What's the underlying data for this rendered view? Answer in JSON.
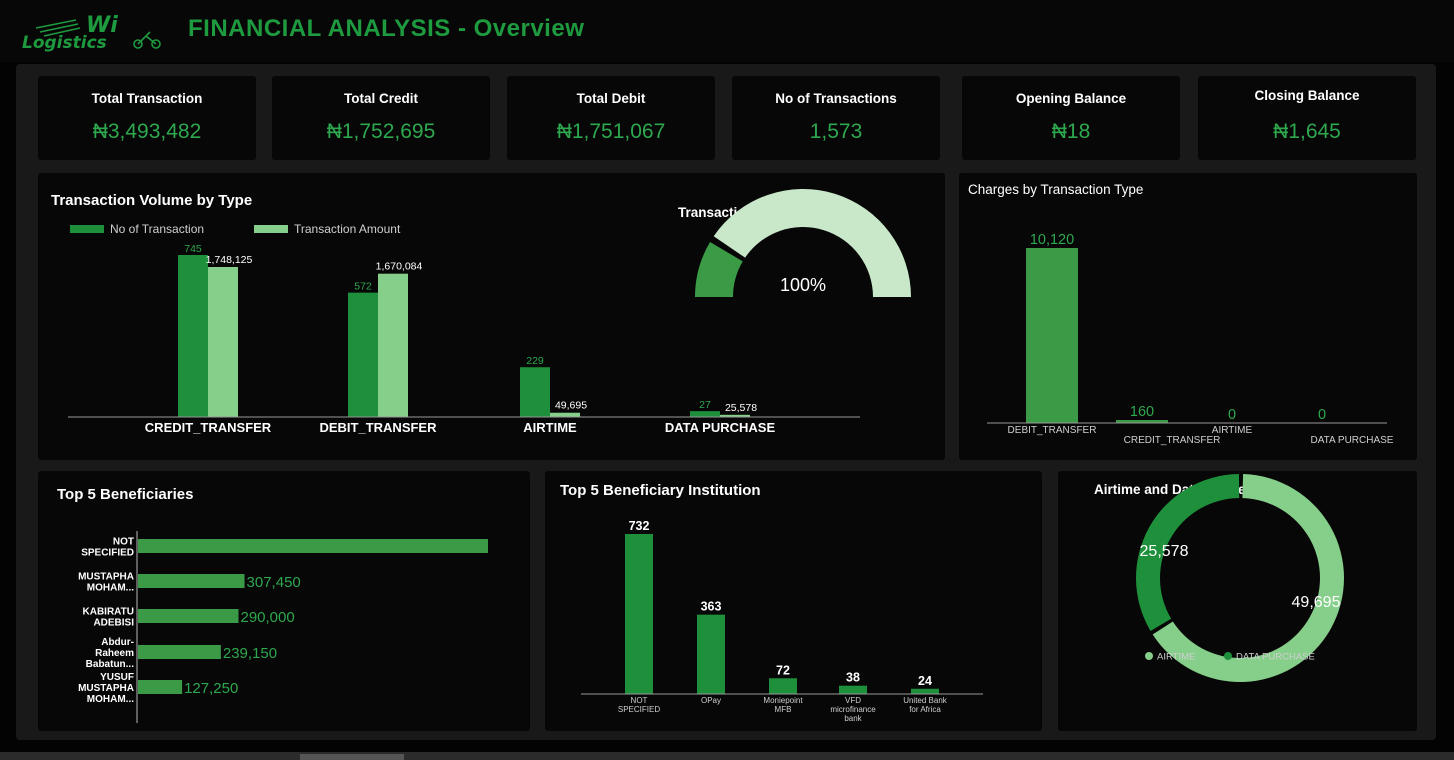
{
  "header": {
    "logo_text_top": "Wi",
    "logo_text_bottom": "Logistics",
    "title": "FINANCIAL ANALYSIS - Overview"
  },
  "kpis": [
    {
      "label": "Total Transaction",
      "value": "₦3,493,482"
    },
    {
      "label": "Total Credit",
      "value": "₦1,752,695"
    },
    {
      "label": "Total Debit",
      "value": "₦1,751,067"
    },
    {
      "label": "No of Transactions",
      "value": "1,573"
    },
    {
      "label": "Opening Balance",
      "value": "₦18"
    },
    {
      "label": "Closing Balance",
      "value": "₦1,645"
    }
  ],
  "colors": {
    "green": "#1e8f3a",
    "light_green": "#86cf8a",
    "mid_green": "#3a9a45",
    "pale_green": "#c9e8c9",
    "title_green": "#1e9a3f"
  },
  "chart_data": [
    {
      "id": "volume",
      "type": "bar",
      "title": "Transaction Volume by Type",
      "categories": [
        "CREDIT_TRANSFER",
        "DEBIT_TRANSFER",
        "AIRTIME",
        "DATA PURCHASE"
      ],
      "series": [
        {
          "name": "No of Transaction",
          "values": [
            745,
            572,
            229,
            27
          ],
          "labels": [
            "745",
            "572",
            "229",
            "27"
          ]
        },
        {
          "name": "Transaction Amount",
          "values": [
            1748125,
            1670084,
            49695,
            25578
          ],
          "labels": [
            "1,748,125",
            "1,670,084",
            "49,695",
            "25,578"
          ]
        }
      ],
      "legend": "top-left"
    },
    {
      "id": "status",
      "type": "pie",
      "title": "Transaction Status",
      "value_label": "100%",
      "values": [
        100
      ]
    },
    {
      "id": "charges",
      "type": "bar",
      "title": "Charges by Transaction Type",
      "categories": [
        "DEBIT_TRANSFER",
        "CREDIT_TRANSFER",
        "AIRTIME",
        "DATA PURCHASE"
      ],
      "values": [
        10120,
        160,
        0,
        0
      ],
      "labels": [
        "10,120",
        "160",
        "0",
        "0"
      ]
    },
    {
      "id": "beneficiaries",
      "type": "bar",
      "title": "Top 5 Beneficiaries",
      "categories": [
        [
          "NOT",
          "SPECIFIED"
        ],
        [
          "MUSTAPHA",
          "MOHAM..."
        ],
        [
          "KABIRATU",
          "ADEBISI"
        ],
        [
          "Abdur-",
          "Raheem",
          "Babatun..."
        ],
        [
          "YUSUF",
          "MUSTAPHA",
          "MOHAM..."
        ]
      ],
      "values": [
        1010000,
        307450,
        290000,
        239150,
        127250
      ],
      "labels": [
        "",
        "307,450",
        "290,000",
        "239,150",
        "127,250"
      ]
    },
    {
      "id": "institutions",
      "type": "bar",
      "title": "Top 5 Beneficiary Institution",
      "categories": [
        [
          "NOT",
          "SPECIFIED"
        ],
        [
          "OPay"
        ],
        [
          "Moniepoint",
          "MFB"
        ],
        [
          "VFD",
          "microfinance",
          "bank"
        ],
        [
          "United Bank",
          "for Africa"
        ]
      ],
      "values": [
        732,
        363,
        72,
        38,
        24
      ],
      "labels": [
        "732",
        "363",
        "72",
        "38",
        "24"
      ]
    },
    {
      "id": "usage",
      "type": "pie",
      "title": "Airtime and Data Usage",
      "categories": [
        "AIRTIME",
        "DATA PURCHASE"
      ],
      "values": [
        49695,
        25578
      ],
      "labels": [
        "49,695",
        "25,578"
      ],
      "legend": "bottom"
    }
  ]
}
